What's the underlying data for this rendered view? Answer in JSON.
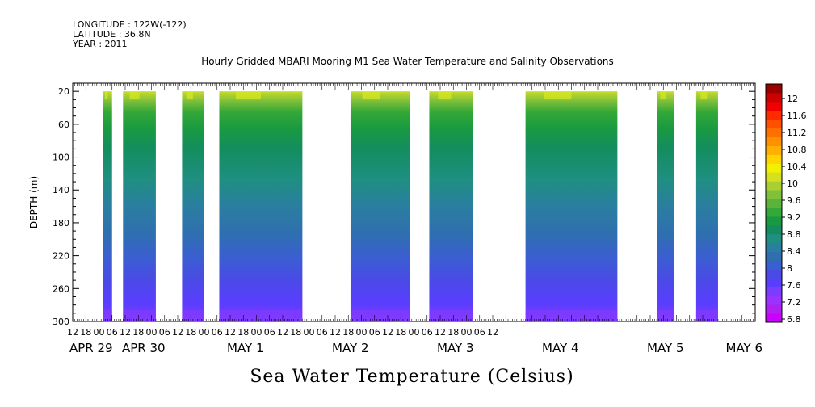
{
  "header": {
    "longitude": "LONGITUDE : 122W(-122)",
    "latitude": "LATITUDE : 36.8N",
    "year": "YEAR : 2011"
  },
  "chart_data": {
    "type": "heatmap",
    "title": "Hourly Gridded MBARI Mooring M1 Sea Water Temperature and Salinity Observations",
    "variable_label": "Sea Water Temperature (Celsius)",
    "ylabel": "DEPTH (m)",
    "ylim": [
      300,
      10
    ],
    "y_ticks": [
      20,
      60,
      100,
      140,
      180,
      220,
      260,
      300
    ],
    "x_hour_ticks": [
      "12",
      "18",
      "00",
      "06",
      "12",
      "18",
      "00",
      "06",
      "12",
      "18",
      "00",
      "06",
      "12",
      "18",
      "00",
      "06",
      "12",
      "18",
      "00",
      "06",
      "12",
      "18",
      "00",
      "06",
      "12",
      "18",
      "00",
      "06",
      "12",
      "18",
      "00",
      "06",
      "12"
    ],
    "x_day_labels": [
      {
        "label": "APR 29",
        "hours": -12
      },
      {
        "label": "APR 30",
        "hours": 12
      },
      {
        "label": "MAY  1",
        "hours": 60
      },
      {
        "label": "MAY  2",
        "hours": 108
      },
      {
        "label": "MAY  3",
        "hours": 156
      },
      {
        "label": "MAY  4",
        "hours": 204
      },
      {
        "label": "MAY  5",
        "hours": 252
      },
      {
        "label": "MAY  6",
        "hours": 288
      }
    ],
    "x_start": "2011-04-28 12:00",
    "x_end": "2011-05-06 12:00",
    "data_blocks": [
      {
        "start": 2,
        "end": 6
      },
      {
        "start": 11,
        "end": 26
      },
      {
        "start": 38,
        "end": 48
      },
      {
        "start": 55,
        "end": 93
      },
      {
        "start": 115,
        "end": 142
      },
      {
        "start": 151,
        "end": 171
      },
      {
        "start": 195,
        "end": 237
      },
      {
        "start": 255,
        "end": 263
      },
      {
        "start": 273,
        "end": 283
      }
    ],
    "colorbar": {
      "levels": [
        6.8,
        7.0,
        7.2,
        7.4,
        7.6,
        7.8,
        8.0,
        8.2,
        8.4,
        8.6,
        8.8,
        9.0,
        9.2,
        9.4,
        9.6,
        9.8,
        10.0,
        10.2,
        10.4,
        10.6,
        10.8,
        11.0,
        11.2,
        11.4,
        11.6,
        11.8,
        12.0,
        12.2
      ],
      "tick_labels": [
        "12",
        "11.6",
        "11.2",
        "10.8",
        "10.4",
        "10",
        "9.6",
        "9.2",
        "8.8",
        "8.4",
        "8",
        "7.6",
        "7.2",
        "6.8"
      ],
      "colors": [
        "#cc00ff",
        "#b020f0",
        "#9933ff",
        "#7a3dff",
        "#5a3dff",
        "#4a4ae6",
        "#3a5fd0",
        "#2f6fb0",
        "#2a7ea0",
        "#1f8f80",
        "#138d5f",
        "#1a9a40",
        "#34a838",
        "#5bb33a",
        "#80c03a",
        "#a8d030",
        "#d4e020",
        "#f0f000",
        "#ffd400",
        "#ffb000",
        "#ff9000",
        "#ff7000",
        "#ff5000",
        "#ff2a00",
        "#f00000",
        "#cc0000",
        "#990000"
      ]
    },
    "depth_profile_description": "temperature decreases with depth from ~9.8C near 20 m to ~7.0C near 300 m"
  }
}
